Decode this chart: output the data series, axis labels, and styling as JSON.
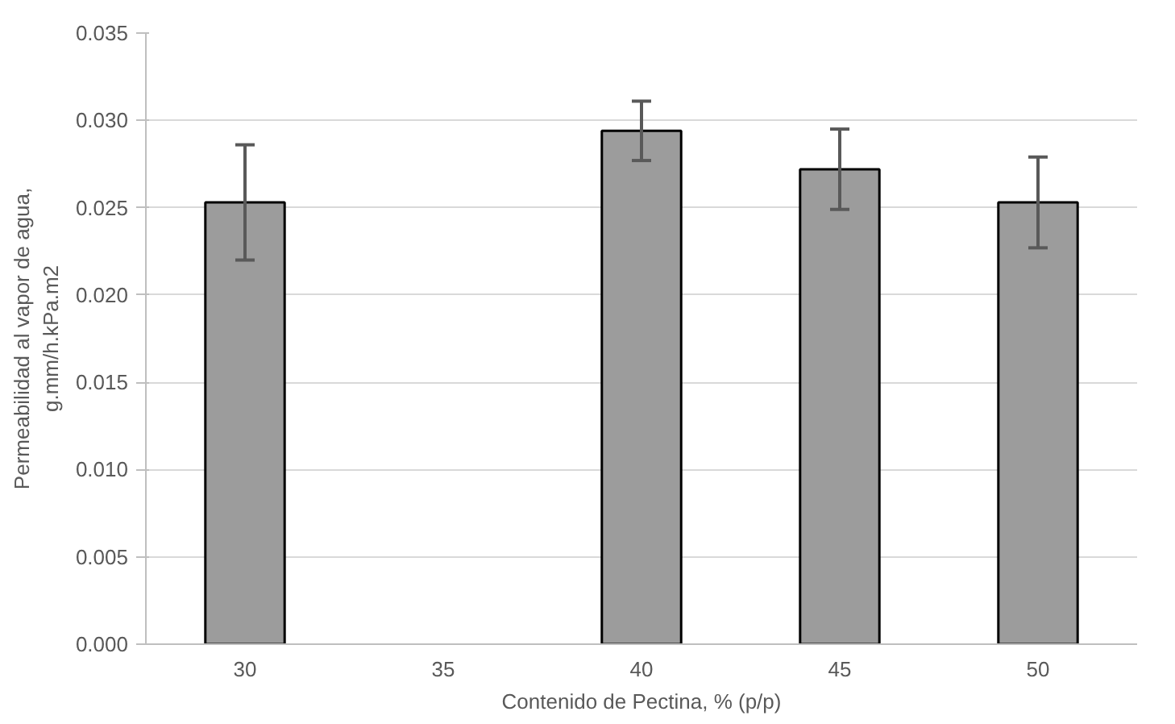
{
  "chart_data": {
    "type": "bar",
    "xlabel": "Contenido de Pectina, % (p/p)",
    "ylabel": "Permeabilidad al vapor de agua,\ng.mm/h.kPa.m2",
    "categories": [
      "30",
      "35",
      "40",
      "45",
      "50"
    ],
    "values": [
      0.0253,
      null,
      0.0294,
      0.0272,
      0.0253
    ],
    "errors": [
      0.0033,
      null,
      0.0017,
      0.0023,
      0.0026
    ],
    "color": "#9c9c9c",
    "ylim": [
      0,
      0.035
    ],
    "yticks": [
      {
        "value": 0,
        "label": "0.000"
      },
      {
        "value": 0.005,
        "label": "0.005"
      },
      {
        "value": 0.01,
        "label": "0.010"
      },
      {
        "value": 0.015,
        "label": "0.015"
      },
      {
        "value": 0.02,
        "label": "0.020"
      },
      {
        "value": 0.025,
        "label": "0.025"
      },
      {
        "value": 0.03,
        "label": "0.030"
      },
      {
        "value": 0.035,
        "label": "0.035"
      }
    ],
    "grid": "y"
  }
}
